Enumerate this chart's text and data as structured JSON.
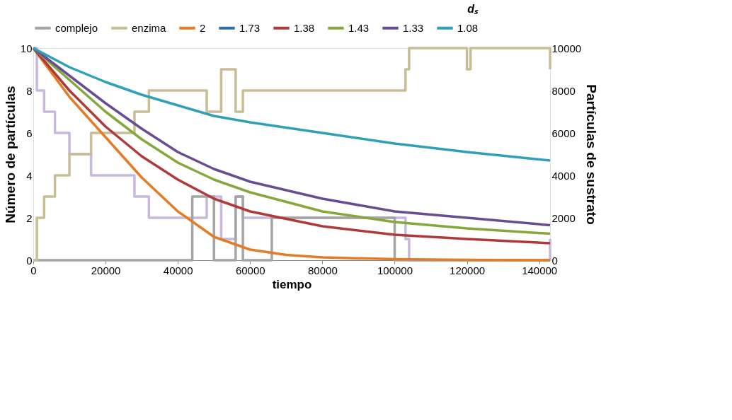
{
  "chart_data": {
    "type": "line",
    "xlabel": "tiempo",
    "ylabel": "Número de partículas",
    "y2label": "Partículas de sustrato",
    "legend_title": "dₛ",
    "legend": "top",
    "grid": false,
    "marker": "none",
    "xlim": [
      0,
      143000
    ],
    "xticks": [
      0,
      20000,
      40000,
      60000,
      80000,
      100000,
      120000,
      140000
    ],
    "ylim": [
      0,
      10
    ],
    "yticks": [
      0,
      2,
      4,
      6,
      8,
      10
    ],
    "y2lim": [
      0,
      10000
    ],
    "y2ticks": [
      0,
      2000,
      4000,
      6000,
      8000,
      10000
    ],
    "series": [
      {
        "type": "step",
        "color": "#c7b9dc",
        "x": [
          0,
          1000,
          3000,
          6000,
          10000,
          16000,
          28000,
          32000,
          48000,
          52000,
          56000,
          58000,
          62000,
          103000,
          104000,
          143000
        ],
        "values": [
          10,
          8,
          7,
          6,
          5,
          4,
          3,
          2,
          3,
          1,
          3,
          2,
          2,
          1,
          0,
          1
        ]
      },
      {
        "name": "complejo",
        "type": "step",
        "color": "#a5a5a5",
        "x": [
          0,
          44000,
          50000,
          56000,
          58000,
          66000,
          100000,
          143000
        ],
        "values": [
          0,
          3,
          0,
          3,
          0,
          2,
          0,
          0
        ]
      },
      {
        "name": "enzima",
        "type": "step",
        "color": "#c9bd96",
        "x": [
          0,
          1000,
          3000,
          6000,
          10000,
          16000,
          28000,
          32000,
          48000,
          52000,
          56000,
          58000,
          62000,
          103000,
          104000,
          120000,
          121000,
          143000
        ],
        "values": [
          0,
          2,
          3,
          4,
          5,
          6,
          7,
          8,
          7,
          9,
          7,
          8,
          8,
          9,
          10,
          9,
          10,
          9
        ]
      },
      {
        "name": "2",
        "color": "#e57b24",
        "axis": "y2",
        "x": [
          0,
          10000,
          20000,
          30000,
          40000,
          50000,
          60000,
          70000,
          80000,
          100000,
          120000,
          143000
        ],
        "values": [
          10000,
          7700,
          5800,
          3900,
          2300,
          1100,
          500,
          250,
          130,
          50,
          20,
          0
        ]
      },
      {
        "name": "1.73",
        "color": "#2e6ea6",
        "axis": "y2"
      },
      {
        "name": "1.38",
        "color": "#b03a3a",
        "axis": "y2",
        "x": [
          0,
          10000,
          20000,
          30000,
          40000,
          50000,
          60000,
          80000,
          100000,
          120000,
          143000
        ],
        "values": [
          10000,
          8000,
          6300,
          4900,
          3800,
          2900,
          2300,
          1600,
          1200,
          1000,
          800
        ]
      },
      {
        "name": "1.43",
        "color": "#84a83c",
        "axis": "y2",
        "x": [
          0,
          10000,
          20000,
          30000,
          40000,
          50000,
          60000,
          80000,
          100000,
          120000,
          143000
        ],
        "values": [
          10000,
          8500,
          7000,
          5700,
          4600,
          3800,
          3200,
          2300,
          1800,
          1500,
          1250
        ]
      },
      {
        "name": "1.33",
        "color": "#6a4c93",
        "axis": "y2",
        "x": [
          0,
          10000,
          20000,
          30000,
          40000,
          50000,
          60000,
          80000,
          100000,
          120000,
          143000
        ],
        "values": [
          10000,
          8700,
          7400,
          6200,
          5100,
          4300,
          3700,
          2900,
          2300,
          2000,
          1650
        ]
      },
      {
        "name": "1.08",
        "color": "#2fa0b8",
        "axis": "y2",
        "x": [
          0,
          10000,
          20000,
          30000,
          40000,
          50000,
          60000,
          80000,
          100000,
          120000,
          143000
        ],
        "values": [
          10000,
          9100,
          8400,
          7800,
          7300,
          6800,
          6500,
          6000,
          5500,
          5100,
          4700
        ]
      }
    ]
  }
}
